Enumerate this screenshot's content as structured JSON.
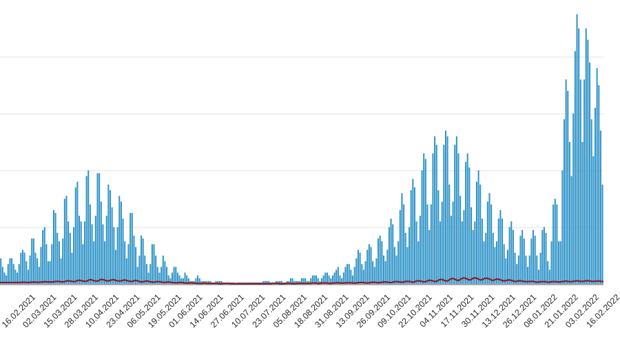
{
  "chart_data": {
    "type": "bar",
    "title": "",
    "xlabel": "",
    "ylabel": "",
    "grid": true,
    "legend": "none",
    "colors": {
      "bars": "#2f94c8",
      "line": "#8b1a2b",
      "grid": "#e3e3e3",
      "axis": "#555555"
    },
    "tick_labels": [
      "16.02.2021",
      "02.03.2021",
      "15.03.2021",
      "28.03.2021",
      "10.04.2021",
      "23.04.2021",
      "06.05.2021",
      "19.05.2021",
      "01.06.2021",
      "14.06.2021",
      "27.06.2021",
      "10.07.2021",
      "23.07.2021",
      "05.08.2021",
      "18.08.2021",
      "31.08.2021",
      "13.09.2021",
      "26.09.2021",
      "09.10.2021",
      "22.10.2021",
      "04.11.2021",
      "17.11.2021",
      "30.11.2021",
      "13.12.2021",
      "26.12.2021",
      "08.01.2022",
      "21.01.2022",
      "03.02.2022",
      "16.02.2022"
    ],
    "ylim": [
      0,
      100
    ],
    "yticks": [
      0,
      20,
      40,
      60,
      80
    ],
    "series": [
      {
        "type": "bar",
        "values": [
          9,
          6,
          4,
          3,
          7,
          9,
          9,
          7,
          5,
          4,
          7,
          11,
          12,
          11,
          8,
          5,
          10,
          16,
          16,
          11,
          9,
          6,
          13,
          19,
          20,
          14,
          8,
          8,
          14,
          26,
          25,
          18,
          15,
          9,
          16,
          30,
          31,
          22,
          18,
          11,
          20,
          34,
          36,
          24,
          22,
          14,
          22,
          38,
          40,
          28,
          21,
          15,
          24,
          39,
          39,
          29,
          21,
          15,
          24,
          35,
          33,
          27,
          20,
          12,
          20,
          31,
          29,
          23,
          15,
          9,
          14,
          25,
          25,
          17,
          13,
          6,
          10,
          17,
          16,
          10,
          7,
          4,
          7,
          14,
          14,
          10,
          6,
          4,
          6,
          10,
          8,
          6,
          3,
          2,
          4,
          6,
          6,
          4,
          3,
          2,
          2,
          4,
          3,
          2,
          1,
          1,
          1,
          2,
          3,
          2,
          1,
          1,
          1,
          1,
          1,
          1,
          0.5,
          0.5,
          1,
          1,
          1,
          1,
          0.5,
          0.5,
          0.5,
          0.5,
          0.5,
          0.5,
          0.5,
          0.3,
          0.5,
          0.5,
          0.5,
          0.5,
          0.5,
          0.5,
          0.5,
          0.5,
          0.5,
          0.5,
          0.5,
          0.5,
          0.5,
          0.5,
          1,
          1,
          1,
          1,
          0.5,
          0.5,
          0.5,
          1,
          1,
          1,
          1,
          0.5,
          0.5,
          1,
          1,
          2,
          2,
          1,
          1,
          1,
          1,
          2,
          2,
          2,
          1,
          1,
          2,
          3,
          3,
          3,
          2,
          1,
          2,
          3,
          4,
          4,
          3,
          2,
          3,
          4,
          5,
          6,
          3,
          2,
          4,
          6,
          7,
          7,
          5,
          3,
          6,
          9,
          12,
          11,
          7,
          5,
          8,
          12,
          14,
          13,
          8,
          6,
          9,
          16,
          17,
          15,
          10,
          8,
          12,
          20,
          23,
          21,
          13,
          10,
          15,
          26,
          32,
          28,
          18,
          13,
          20,
          33,
          37,
          34,
          22,
          15,
          24,
          40,
          46,
          44,
          28,
          19,
          28,
          46,
          52,
          49,
          33,
          22,
          29,
          49,
          54,
          52,
          35,
          24,
          29,
          49,
          52,
          46,
          31,
          22,
          26,
          43,
          46,
          41,
          27,
          19,
          22,
          36,
          40,
          35,
          23,
          15,
          18,
          29,
          32,
          28,
          18,
          13,
          15,
          23,
          26,
          23,
          14,
          9,
          12,
          20,
          22,
          19,
          11,
          7,
          10,
          17,
          19,
          16,
          10,
          6,
          10,
          16,
          19,
          17,
          10,
          5,
          11,
          19,
          20,
          18,
          8,
          5,
          15,
          28,
          30,
          28,
          15,
          15,
          40,
          58,
          72,
          68,
          50,
          38,
          60,
          82,
          95,
          90,
          72,
          50,
          72,
          90,
          86,
          78,
          58,
          45,
          62,
          76,
          70,
          54,
          35
        ]
      },
      {
        "type": "line",
        "values": [
          0.5,
          0.5,
          0.5,
          0.5,
          0.5,
          0.5,
          0.5,
          0.5,
          0.5,
          0.5,
          0.5,
          0.5,
          0.6,
          0.6,
          0.5,
          0.5,
          0.6,
          0.6,
          0.7,
          0.6,
          0.6,
          0.6,
          0.7,
          0.7,
          0.8,
          0.7,
          0.7,
          0.7,
          0.7,
          0.8,
          0.9,
          0.9,
          0.8,
          0.7,
          0.8,
          1,
          1.1,
          1,
          0.9,
          0.8,
          0.9,
          1.2,
          1.3,
          1.1,
          1,
          0.9,
          1,
          1.4,
          1.5,
          1.3,
          1.1,
          1,
          1.1,
          1.5,
          1.6,
          1.4,
          1.2,
          1,
          1.2,
          1.4,
          1.5,
          1.3,
          1.1,
          1,
          1.1,
          1.3,
          1.4,
          1.2,
          1,
          0.9,
          0.9,
          1.2,
          1.2,
          1,
          0.8,
          0.7,
          0.8,
          1,
          1,
          0.8,
          0.7,
          0.6,
          0.7,
          0.8,
          0.8,
          0.7,
          0.6,
          0.5,
          0.6,
          0.7,
          0.6,
          0.5,
          0.4,
          0.4,
          0.4,
          0.5,
          0.5,
          0.4,
          0.3,
          0.3,
          0.3,
          0.4,
          0.3,
          0.3,
          0.2,
          0.2,
          0.2,
          0.2,
          0.3,
          0.2,
          0.2,
          0.2,
          0.2,
          0.2,
          0.2,
          0.2,
          0.1,
          0.1,
          0.2,
          0.2,
          0.2,
          0.2,
          0.1,
          0.1,
          0.1,
          0.1,
          0.1,
          0.1,
          0.1,
          0.1,
          0.1,
          0.1,
          0.1,
          0.1,
          0.1,
          0.1,
          0.1,
          0.1,
          0.1,
          0.1,
          0.1,
          0.1,
          0.1,
          0.1,
          0.2,
          0.2,
          0.2,
          0.2,
          0.1,
          0.1,
          0.1,
          0.2,
          0.2,
          0.2,
          0.2,
          0.1,
          0.1,
          0.2,
          0.2,
          0.2,
          0.2,
          0.2,
          0.2,
          0.2,
          0.2,
          0.3,
          0.3,
          0.3,
          0.2,
          0.2,
          0.3,
          0.3,
          0.3,
          0.3,
          0.2,
          0.2,
          0.3,
          0.3,
          0.4,
          0.4,
          0.3,
          0.3,
          0.3,
          0.4,
          0.4,
          0.4,
          0.4,
          0.3,
          0.3,
          0.4,
          0.5,
          0.5,
          0.5,
          0.4,
          0.3,
          0.4,
          0.5,
          0.6,
          0.6,
          0.5,
          0.4,
          0.5,
          0.6,
          0.7,
          0.7,
          0.6,
          0.5,
          0.5,
          0.7,
          0.8,
          0.8,
          0.7,
          0.6,
          0.6,
          0.8,
          0.9,
          0.9,
          0.8,
          0.6,
          0.7,
          1,
          1.1,
          1,
          0.9,
          0.7,
          0.8,
          1.1,
          1.3,
          1.2,
          1,
          0.8,
          1,
          1.4,
          1.6,
          1.5,
          1.2,
          1,
          1.2,
          1.7,
          1.9,
          1.8,
          1.5,
          1.2,
          1.4,
          1.9,
          2.1,
          2,
          1.7,
          1.4,
          1.5,
          2,
          2.1,
          2,
          1.7,
          1.4,
          1.5,
          1.9,
          2,
          1.9,
          1.6,
          1.3,
          1.3,
          1.6,
          1.7,
          1.6,
          1.3,
          1.1,
          1.1,
          1.3,
          1.4,
          1.3,
          1.1,
          0.9,
          0.9,
          1.1,
          1.1,
          1,
          0.9,
          0.8,
          0.8,
          0.9,
          0.9,
          0.9,
          0.7,
          0.6,
          0.7,
          0.8,
          0.8,
          0.8,
          0.7,
          0.6,
          0.7,
          0.8,
          0.8,
          0.8,
          0.7,
          0.7,
          0.8,
          0.9,
          1,
          0.9,
          0.8,
          0.8,
          0.9,
          1,
          1.1,
          1,
          0.9,
          0.9,
          1,
          1.1,
          1.1,
          1,
          0.9,
          0.9,
          1,
          1,
          1,
          0.9,
          0.8
        ]
      }
    ]
  }
}
